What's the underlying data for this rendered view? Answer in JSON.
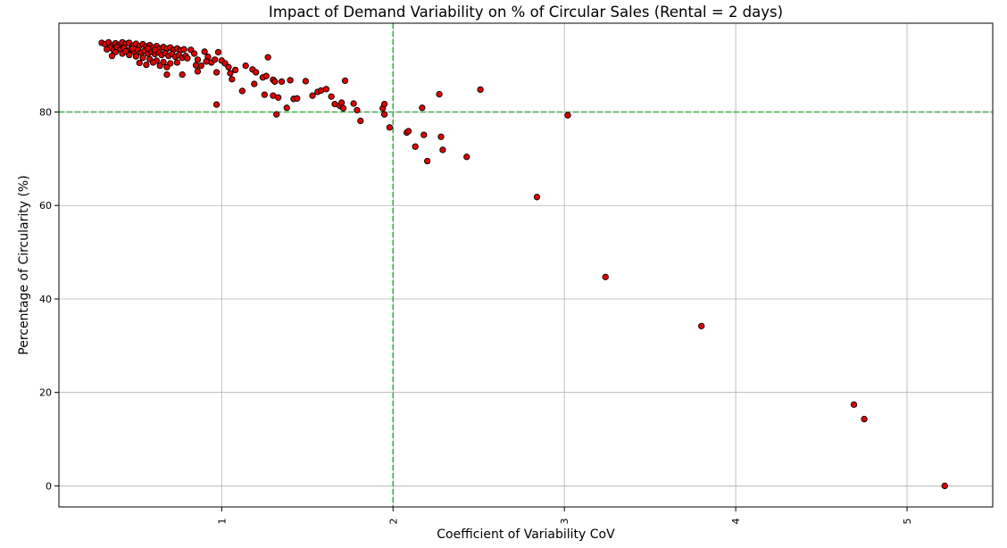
{
  "chart_data": {
    "type": "scatter",
    "title": "Impact of Demand Variability on % of Circular Sales (Rental = 2 days)",
    "xlabel": "Coefficient of Variability CoV",
    "ylabel": "Percentage of Circularity (%)",
    "xlim": [
      0.05,
      5.5
    ],
    "ylim": [
      -4.5,
      99
    ],
    "xticks": [
      1,
      2,
      3,
      4,
      5
    ],
    "xtick_labels": [
      "1",
      "2",
      "3",
      "4",
      "5"
    ],
    "yticks": [
      0,
      20,
      40,
      60,
      80
    ],
    "ytick_labels": [
      "0",
      "20",
      "40",
      "60",
      "80"
    ],
    "grid": true,
    "marker_color": "#e00000",
    "marker_edge_color": "#000000",
    "reference_lines": {
      "color": "#3cb043",
      "style": "dashed",
      "x": 2,
      "y": 80
    },
    "points": [
      [
        0.3,
        94.8
      ],
      [
        0.32,
        94.5
      ],
      [
        0.34,
        94.9
      ],
      [
        0.36,
        94.2
      ],
      [
        0.38,
        94.7
      ],
      [
        0.4,
        94.4
      ],
      [
        0.42,
        94.9
      ],
      [
        0.44,
        94.6
      ],
      [
        0.46,
        94.8
      ],
      [
        0.48,
        94.2
      ],
      [
        0.5,
        94.6
      ],
      [
        0.52,
        94.1
      ],
      [
        0.54,
        94.5
      ],
      [
        0.56,
        94.0
      ],
      [
        0.58,
        94.3
      ],
      [
        0.6,
        93.8
      ],
      [
        0.62,
        94.1
      ],
      [
        0.64,
        93.6
      ],
      [
        0.66,
        93.9
      ],
      [
        0.68,
        93.5
      ],
      [
        0.7,
        93.8
      ],
      [
        0.72,
        93.3
      ],
      [
        0.74,
        93.6
      ],
      [
        0.76,
        93.2
      ],
      [
        0.78,
        93.4
      ],
      [
        0.35,
        93.8
      ],
      [
        0.37,
        93.2
      ],
      [
        0.39,
        93.9
      ],
      [
        0.41,
        93.4
      ],
      [
        0.43,
        93.7
      ],
      [
        0.45,
        93.1
      ],
      [
        0.47,
        93.5
      ],
      [
        0.49,
        92.9
      ],
      [
        0.51,
        93.3
      ],
      [
        0.53,
        92.7
      ],
      [
        0.55,
        93.1
      ],
      [
        0.57,
        92.5
      ],
      [
        0.59,
        92.9
      ],
      [
        0.61,
        92.4
      ],
      [
        0.63,
        92.8
      ],
      [
        0.65,
        92.2
      ],
      [
        0.67,
        92.6
      ],
      [
        0.69,
        92.0
      ],
      [
        0.71,
        92.4
      ],
      [
        0.73,
        91.8
      ],
      [
        0.75,
        92.2
      ],
      [
        0.77,
        91.6
      ],
      [
        0.79,
        92.0
      ],
      [
        0.38,
        92.8
      ],
      [
        0.42,
        92.5
      ],
      [
        0.46,
        92.2
      ],
      [
        0.5,
        91.9
      ],
      [
        0.54,
        91.6
      ],
      [
        0.58,
        91.3
      ],
      [
        0.62,
        91.0
      ],
      [
        0.66,
        90.7
      ],
      [
        0.7,
        90.4
      ],
      [
        0.74,
        90.6
      ],
      [
        0.52,
        90.5
      ],
      [
        0.56,
        90.1
      ],
      [
        0.6,
        90.6
      ],
      [
        0.64,
        89.9
      ],
      [
        0.68,
        89.6
      ],
      [
        0.36,
        92.0
      ],
      [
        0.44,
        93.0
      ],
      [
        0.48,
        93.6
      ],
      [
        0.33,
        93.4
      ],
      [
        0.57,
        93.6
      ],
      [
        0.61,
        93.3
      ],
      [
        0.8,
        91.5
      ],
      [
        0.82,
        93.3
      ],
      [
        0.84,
        92.5
      ],
      [
        0.86,
        91.2
      ],
      [
        0.88,
        89.9
      ],
      [
        0.9,
        92.9
      ],
      [
        0.92,
        91.8
      ],
      [
        0.94,
        90.6
      ],
      [
        0.96,
        91.2
      ],
      [
        0.98,
        92.8
      ],
      [
        0.86,
        88.7
      ],
      [
        0.77,
        88.0
      ],
      [
        0.68,
        88.0
      ],
      [
        0.85,
        90.0
      ],
      [
        0.91,
        90.8
      ],
      [
        0.97,
        88.5
      ],
      [
        1.0,
        91.0
      ],
      [
        1.02,
        90.4
      ],
      [
        1.04,
        89.6
      ],
      [
        1.05,
        88.3
      ],
      [
        1.06,
        87.0
      ],
      [
        1.08,
        89.0
      ],
      [
        1.12,
        84.5
      ],
      [
        1.14,
        89.9
      ],
      [
        1.18,
        89.1
      ],
      [
        1.2,
        88.5
      ],
      [
        1.19,
        86.0
      ],
      [
        1.24,
        87.4
      ],
      [
        1.26,
        87.7
      ],
      [
        1.25,
        83.7
      ],
      [
        1.27,
        91.7
      ],
      [
        1.3,
        86.9
      ],
      [
        1.31,
        86.5
      ],
      [
        1.3,
        83.5
      ],
      [
        1.33,
        83.1
      ],
      [
        1.32,
        79.5
      ],
      [
        1.35,
        86.5
      ],
      [
        1.38,
        80.9
      ],
      [
        1.4,
        86.8
      ],
      [
        1.42,
        82.8
      ],
      [
        1.44,
        82.9
      ],
      [
        0.97,
        81.6
      ],
      [
        1.49,
        86.6
      ],
      [
        1.53,
        83.5
      ],
      [
        1.56,
        84.3
      ],
      [
        1.58,
        84.6
      ],
      [
        1.61,
        84.9
      ],
      [
        1.64,
        83.3
      ],
      [
        1.66,
        81.7
      ],
      [
        1.69,
        81.3
      ],
      [
        1.7,
        82.0
      ],
      [
        1.72,
        86.7
      ],
      [
        1.71,
        80.8
      ],
      [
        1.77,
        81.8
      ],
      [
        1.79,
        80.4
      ],
      [
        1.81,
        78.1
      ],
      [
        1.94,
        80.8
      ],
      [
        1.95,
        79.5
      ],
      [
        1.95,
        81.7
      ],
      [
        1.98,
        76.7
      ],
      [
        2.08,
        75.6
      ],
      [
        2.09,
        75.9
      ],
      [
        2.13,
        72.6
      ],
      [
        2.17,
        80.9
      ],
      [
        2.18,
        75.1
      ],
      [
        2.2,
        69.5
      ],
      [
        2.27,
        83.8
      ],
      [
        2.28,
        74.7
      ],
      [
        2.29,
        71.9
      ],
      [
        2.43,
        70.4
      ],
      [
        2.51,
        84.8
      ],
      [
        2.84,
        61.8
      ],
      [
        3.02,
        79.3
      ],
      [
        3.24,
        44.7
      ],
      [
        3.8,
        34.2
      ],
      [
        4.69,
        17.4
      ],
      [
        4.75,
        14.3
      ],
      [
        5.22,
        0.0
      ]
    ]
  }
}
